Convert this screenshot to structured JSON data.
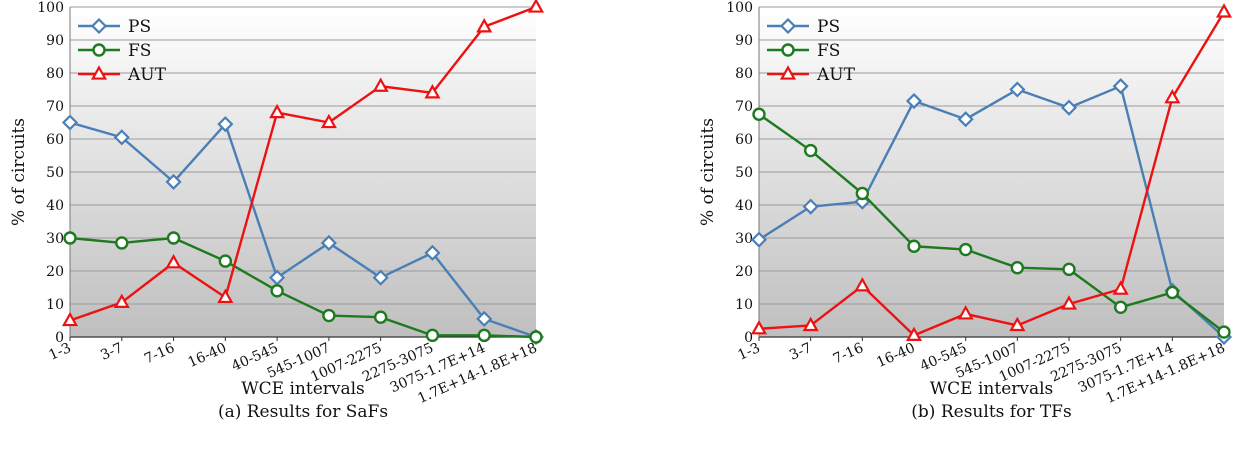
{
  "chart_data": [
    {
      "type": "line",
      "caption": "(a) Results for SaFs",
      "xlabel": "WCE intervals",
      "ylabel": "% of circuits",
      "ylim": [
        0,
        100
      ],
      "yticks": [
        0,
        10,
        20,
        30,
        40,
        50,
        60,
        70,
        80,
        90,
        100
      ],
      "grid": true,
      "legend_position": "top-left",
      "categories": [
        "1-3",
        "3-7",
        "7-16",
        "16-40",
        "40-545",
        "545-1007",
        "1007-2275",
        "2275-3075",
        "3075-1.7E+14",
        "1.7E+14-1.8E+18"
      ],
      "series": [
        {
          "name": "PS",
          "color": "#4a7fb5",
          "marker": "diamond",
          "values": [
            65,
            60.5,
            47,
            64.5,
            18,
            28.5,
            18,
            25.5,
            5.5,
            0
          ]
        },
        {
          "name": "FS",
          "color": "#1e7a1e",
          "marker": "circle",
          "values": [
            30,
            28.5,
            30,
            23,
            14,
            6.5,
            6,
            0.5,
            0.5,
            0
          ]
        },
        {
          "name": "AUT",
          "color": "#ee1111",
          "marker": "triangle",
          "values": [
            5,
            10.5,
            22.5,
            12,
            68,
            65,
            76,
            74,
            94,
            100
          ]
        }
      ]
    },
    {
      "type": "line",
      "caption": "(b) Results for TFs",
      "xlabel": "WCE intervals",
      "ylabel": "% of circuits",
      "ylim": [
        0,
        100
      ],
      "yticks": [
        0,
        10,
        20,
        30,
        40,
        50,
        60,
        70,
        80,
        90,
        100
      ],
      "grid": true,
      "legend_position": "top-left",
      "categories": [
        "1-3",
        "3-7",
        "7-16",
        "16-40",
        "40-545",
        "545-1007",
        "1007-2275",
        "2275-3075",
        "3075-1.7E+14",
        "1.7E+14-1.8E+18"
      ],
      "series": [
        {
          "name": "PS",
          "color": "#4a7fb5",
          "marker": "diamond",
          "values": [
            29.5,
            39.5,
            41,
            71.5,
            66,
            75,
            69.5,
            76,
            14,
            0
          ]
        },
        {
          "name": "FS",
          "color": "#1e7a1e",
          "marker": "circle",
          "values": [
            67.5,
            56.5,
            43.5,
            27.5,
            26.5,
            21,
            20.5,
            9,
            13.5,
            1.5
          ]
        },
        {
          "name": "AUT",
          "color": "#ee1111",
          "marker": "triangle",
          "values": [
            2.5,
            3.5,
            15.5,
            0.5,
            7,
            3.5,
            10,
            14.5,
            72.5,
            98.5
          ]
        }
      ]
    }
  ]
}
